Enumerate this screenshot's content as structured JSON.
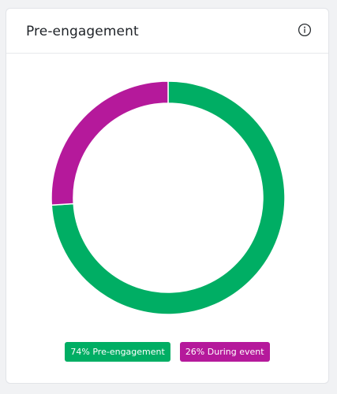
{
  "card": {
    "title": "Pre-engagement",
    "info_icon": "info-circle-icon"
  },
  "chart_data": {
    "type": "pie",
    "donut": true,
    "categories": [
      "Pre-engagement",
      "During event"
    ],
    "values": [
      74,
      26
    ],
    "colors": [
      "#00ae64",
      "#b5199b"
    ],
    "title": "Pre-engagement"
  },
  "legend": {
    "items": [
      {
        "label": "74% Pre-engagement",
        "color": "#00ae64"
      },
      {
        "label": "26% During event",
        "color": "#b5199b"
      }
    ]
  }
}
